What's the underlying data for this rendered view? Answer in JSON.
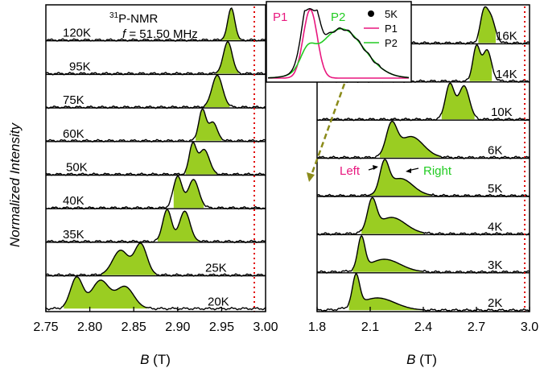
{
  "figure": {
    "ylabel": "Normalized Intensity",
    "nucleus_sup": "31",
    "nucleus": "P-NMR",
    "freq_symbol": "f",
    "freq_value": " = 51.50 MHz",
    "fill_color": "#9ACD22",
    "ref_line_color": "#E00000",
    "arrow_color": "#8B8B1A"
  },
  "chart_data": [
    {
      "type": "area",
      "panel": "left",
      "xlabel_symbol": "B",
      "xlabel_unit": " (T)",
      "xlim": [
        2.75,
        3.0
      ],
      "xticks": [
        "2.75",
        "2.80",
        "2.85",
        "2.90",
        "2.95",
        "3.00"
      ],
      "xtick_values": [
        2.75,
        2.8,
        2.85,
        2.9,
        2.95,
        3.0
      ],
      "reference_line_x": 2.99,
      "series": [
        {
          "name": "120K",
          "peaks": [
            [
              2.961,
              0.004,
              1.0
            ]
          ],
          "fill_range": [
            2.95,
            2.972
          ]
        },
        {
          "name": "95K",
          "peaks": [
            [
              2.957,
              0.005,
              1.0
            ]
          ],
          "fill_range": [
            2.943,
            2.97
          ]
        },
        {
          "name": "75K",
          "peaks": [
            [
              2.945,
              0.006,
              1.0
            ]
          ],
          "fill_range": [
            2.93,
            2.96
          ]
        },
        {
          "name": "60K",
          "peaks": [
            [
              2.928,
              0.004,
              1.0
            ],
            [
              2.94,
              0.005,
              0.6
            ]
          ],
          "fill_range": [
            2.92,
            2.95
          ]
        },
        {
          "name": "50K",
          "peaks": [
            [
              2.917,
              0.004,
              0.95
            ],
            [
              2.93,
              0.006,
              0.8
            ]
          ],
          "fill_range": [
            2.908,
            2.945
          ]
        },
        {
          "name": "40K",
          "peaks": [
            [
              2.9,
              0.005,
              1.0
            ],
            [
              2.918,
              0.006,
              0.9
            ]
          ],
          "fill_range": [
            2.895,
            2.93
          ]
        },
        {
          "name": "35K",
          "peaks": [
            [
              2.888,
              0.005,
              1.0
            ],
            [
              2.908,
              0.006,
              0.95
            ]
          ],
          "fill_range": [
            2.877,
            2.925
          ]
        },
        {
          "name": "25K",
          "peaks": [
            [
              2.835,
              0.009,
              0.8
            ],
            [
              2.858,
              0.007,
              1.0
            ]
          ],
          "fill_range": [
            2.813,
            2.875
          ]
        },
        {
          "name": "20K",
          "peaks": [
            [
              2.785,
              0.007,
              1.0
            ],
            [
              2.812,
              0.01,
              0.9
            ],
            [
              2.84,
              0.01,
              0.7
            ]
          ],
          "fill_range": [
            2.77,
            2.865
          ]
        }
      ]
    },
    {
      "type": "area",
      "panel": "right",
      "xlabel_symbol": "B",
      "xlabel_unit": " (T)",
      "xlim": [
        1.8,
        3.0
      ],
      "xticks": [
        "1.8",
        "2.1",
        "2.4",
        "2.7",
        "3.0"
      ],
      "xtick_values": [
        1.8,
        2.1,
        2.4,
        2.7,
        3.0
      ],
      "reference_line_x": 2.99,
      "series": [
        {
          "name": "16K",
          "peaks": [
            [
              2.74,
              0.02,
              1.0
            ],
            [
              2.78,
              0.025,
              0.95
            ]
          ],
          "fill_range": [
            2.71,
            2.81
          ]
        },
        {
          "name": "14K",
          "peaks": [
            [
              2.7,
              0.02,
              1.0
            ],
            [
              2.76,
              0.025,
              0.9
            ]
          ],
          "fill_range": [
            2.66,
            2.79
          ]
        },
        {
          "name": "10K",
          "peaks": [
            [
              2.55,
              0.025,
              0.95
            ],
            [
              2.63,
              0.03,
              0.9
            ]
          ],
          "fill_range": [
            2.5,
            2.69
          ]
        },
        {
          "name": "6K",
          "peaks": [
            [
              2.22,
              0.03,
              1.0
            ],
            [
              2.33,
              0.07,
              0.7
            ]
          ],
          "fill_range": [
            2.15,
            2.5
          ]
        },
        {
          "name": "5K",
          "peaks": [
            [
              2.18,
              0.025,
              1.0
            ],
            [
              2.27,
              0.07,
              0.6
            ]
          ],
          "fill_range": [
            2.1,
            2.45
          ]
        },
        {
          "name": "4K",
          "peaks": [
            [
              2.11,
              0.025,
              1.0
            ],
            [
              2.22,
              0.08,
              0.55
            ]
          ],
          "fill_range": [
            2.05,
            2.4
          ]
        },
        {
          "name": "3K",
          "peaks": [
            [
              2.05,
              0.02,
              1.0
            ],
            [
              2.18,
              0.09,
              0.4
            ]
          ],
          "fill_range": [
            2.0,
            2.4
          ]
        },
        {
          "name": "2K",
          "peaks": [
            [
              2.02,
              0.02,
              1.0
            ],
            [
              2.14,
              0.1,
              0.4
            ]
          ],
          "fill_range": [
            1.98,
            2.4
          ]
        }
      ],
      "annotations": {
        "left": "Left",
        "right": "Right"
      }
    },
    {
      "type": "line",
      "panel": "inset",
      "legend_position": "top-right",
      "peak_labels": [
        "P1",
        "P2"
      ],
      "series": [
        {
          "name": "5K",
          "color": "#000000",
          "marker": "dot"
        },
        {
          "name": "P1",
          "color": "#E8177E"
        },
        {
          "name": "P2",
          "color": "#22CC22"
        }
      ]
    }
  ]
}
